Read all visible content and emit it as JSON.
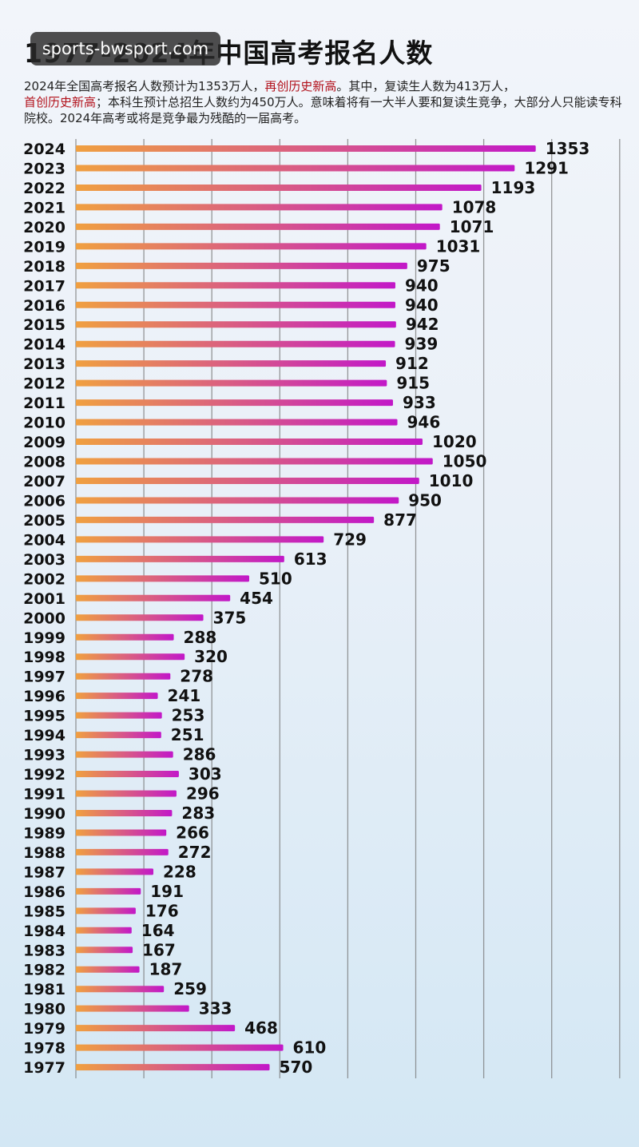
{
  "watermark": "sports-bwsport.com",
  "subtitle": {
    "seg1": "2024年全国高考报名人数预计为1353万人，",
    "seg2": "再创历史新高",
    "seg3": "。其中，复读生人数为413万人，",
    "seg4": "首创历史新高",
    "seg5": "；本科生预计总招生人数约为450万人。意味着将有一大半人要和复读生竞争，大部分人只能读专科院校。2024年高考或将是竞争最为残酷的一届高考。"
  },
  "colors": {
    "bar_start": "#f0a040",
    "bar_end": "#c218c8",
    "grid": "#777777"
  },
  "chart_data": {
    "type": "bar",
    "orientation": "horizontal",
    "title": "1977-2024年中国高考报名人数",
    "unit": "万人",
    "xlim": [
      0,
      1600
    ],
    "grid": true,
    "categories": [
      "2024",
      "2023",
      "2022",
      "2021",
      "2020",
      "2019",
      "2018",
      "2017",
      "2016",
      "2015",
      "2014",
      "2013",
      "2012",
      "2011",
      "2010",
      "2009",
      "2008",
      "2007",
      "2006",
      "2005",
      "2004",
      "2003",
      "2002",
      "2001",
      "2000",
      "1999",
      "1998",
      "1997",
      "1996",
      "1995",
      "1994",
      "1993",
      "1992",
      "1991",
      "1990",
      "1989",
      "1988",
      "1987",
      "1986",
      "1985",
      "1984",
      "1983",
      "1982",
      "1981",
      "1980",
      "1979",
      "1978",
      "1977"
    ],
    "values": [
      1353,
      1291,
      1193,
      1078,
      1071,
      1031,
      975,
      940,
      940,
      942,
      939,
      912,
      915,
      933,
      946,
      1020,
      1050,
      1010,
      950,
      877,
      729,
      613,
      510,
      454,
      375,
      288,
      320,
      278,
      241,
      253,
      251,
      286,
      303,
      296,
      283,
      266,
      272,
      228,
      191,
      176,
      164,
      167,
      187,
      259,
      333,
      468,
      610,
      570
    ]
  }
}
